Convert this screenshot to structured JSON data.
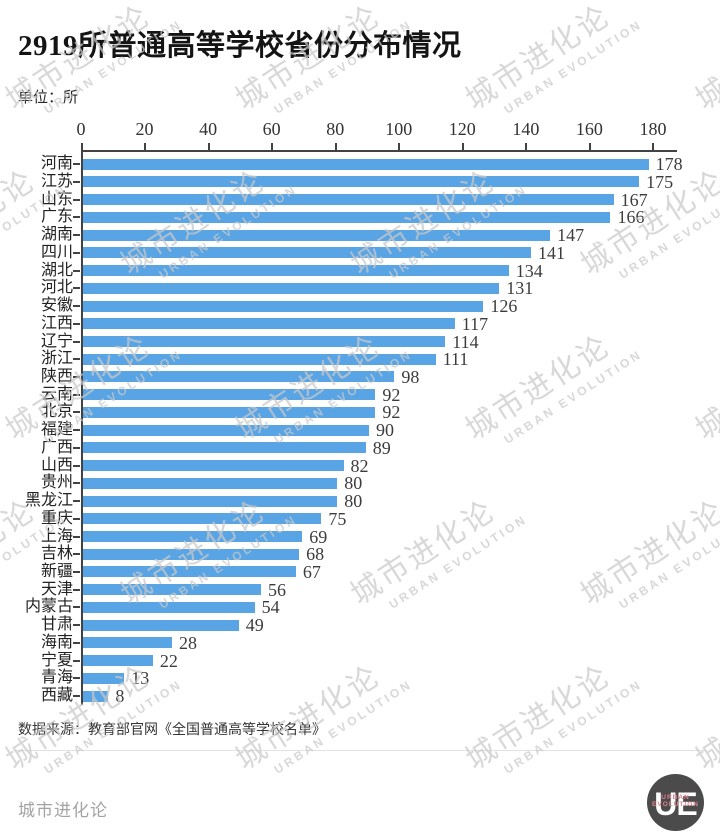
{
  "header": {
    "title": "2919所普通高等学校省份分布情况",
    "unit_label": "单位：所"
  },
  "chart_data": {
    "type": "bar",
    "orientation": "horizontal",
    "title": "2919所普通高等学校省份分布情况",
    "unit": "所",
    "total": 2919,
    "xlim": [
      0,
      180
    ],
    "x_ticks": [
      0,
      20,
      40,
      60,
      80,
      100,
      120,
      140,
      160,
      180
    ],
    "grid": false,
    "legend": "none",
    "bar_color": "#58a4e4",
    "categories": [
      "河南",
      "江苏",
      "山东",
      "广东",
      "湖南",
      "四川",
      "湖北",
      "河北",
      "安徽",
      "江西",
      "辽宁",
      "浙江",
      "陕西",
      "云南",
      "北京",
      "福建",
      "广西",
      "山西",
      "贵州",
      "黑龙江",
      "重庆",
      "上海",
      "吉林",
      "新疆",
      "天津",
      "内蒙古",
      "甘肃",
      "海南",
      "宁夏",
      "青海",
      "西藏"
    ],
    "values": [
      178,
      175,
      167,
      166,
      147,
      141,
      134,
      131,
      126,
      117,
      114,
      111,
      98,
      92,
      92,
      90,
      89,
      82,
      80,
      80,
      75,
      69,
      68,
      67,
      56,
      54,
      49,
      28,
      22,
      13,
      8
    ]
  },
  "source_note": "数据来源：教育部官网《全国普通高等学校名单》",
  "footer": {
    "brand": "城市进化论",
    "logo": {
      "letters": "UE",
      "line1": "URBAN",
      "line2": "EVOLUTION"
    }
  },
  "watermark": {
    "text": "城市进化论",
    "subtext": "URBAN EVOLUTION"
  },
  "colors": {
    "bar": "#58a4e4",
    "axis": "#424242",
    "value_label": "#3c3c3c",
    "watermark": "#c9c9c9",
    "logo_circle": "#4b4b4b",
    "logo_accent": "#e0808f"
  }
}
